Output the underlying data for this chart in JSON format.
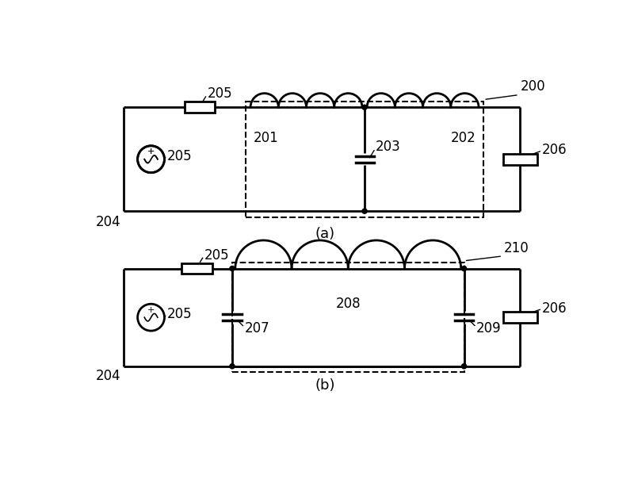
{
  "title_a": "(a)",
  "title_b": "(b)",
  "label_200": "200",
  "label_201": "201",
  "label_202": "202",
  "label_203": "203",
  "label_204": "204",
  "label_205": "205",
  "label_206_a": "206",
  "label_206_b": "206",
  "label_207": "207",
  "label_208": "208",
  "label_209": "209",
  "label_210": "210",
  "line_color": "#000000",
  "bg_color": "#ffffff",
  "lw": 2.0,
  "dashed_lw": 1.5
}
